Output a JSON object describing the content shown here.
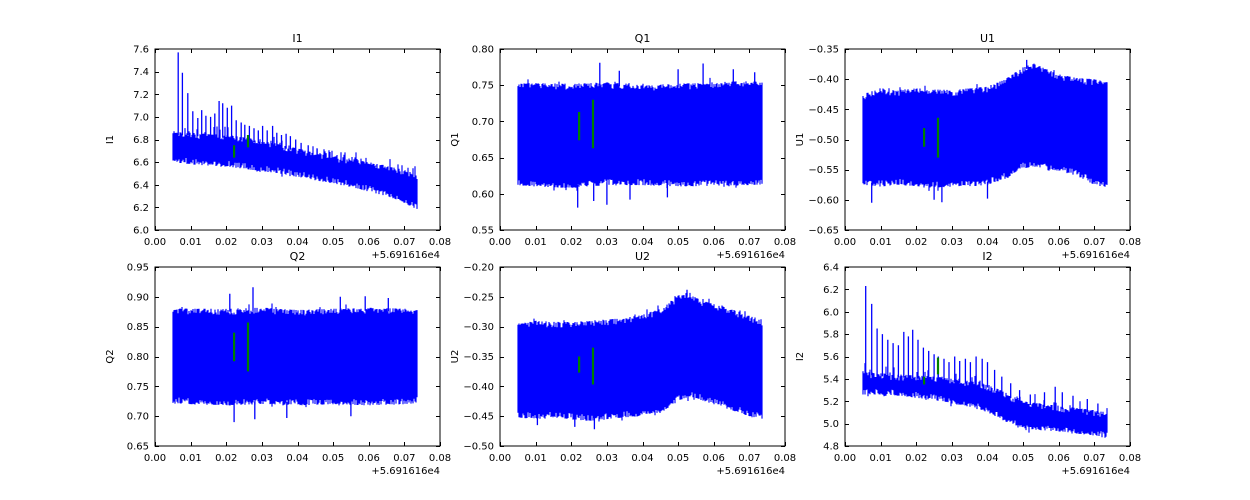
{
  "style": {
    "line_color": "#0000ff",
    "marker_color": "#008000",
    "axes_color": "#000000",
    "text_color": "#000000",
    "background": "#ffffff"
  },
  "chart_data": [
    {
      "type": "line",
      "title": "I1",
      "ylabel": "I1",
      "xlabel": "",
      "legend": null,
      "grid": false,
      "xlim": [
        0.0,
        0.08
      ],
      "ylim": [
        6.0,
        7.6
      ],
      "xtick_vals": [
        0.0,
        0.01,
        0.02,
        0.03,
        0.04,
        0.05,
        0.06,
        0.07,
        0.08
      ],
      "xtick_labels": [
        "0.00",
        "0.01",
        "0.02",
        "0.03",
        "0.04",
        "0.05",
        "0.06",
        "0.07",
        "0.08"
      ],
      "ytick_vals": [
        6.0,
        6.2,
        6.4,
        6.6,
        6.8,
        7.0,
        7.2,
        7.4,
        7.6
      ],
      "ytick_labels": [
        "6.0",
        "6.2",
        "6.4",
        "6.6",
        "6.8",
        "7.0",
        "7.2",
        "7.4",
        "7.6"
      ],
      "x_offset_label": "+5.691616e4",
      "x_start": 0.005,
      "x_end": 0.0735,
      "envelope": [
        [
          0.005,
          6.6,
          6.87
        ],
        [
          0.01,
          6.58,
          6.86
        ],
        [
          0.015,
          6.57,
          6.85
        ],
        [
          0.02,
          6.56,
          6.84
        ],
        [
          0.025,
          6.54,
          6.82
        ],
        [
          0.03,
          6.52,
          6.79
        ],
        [
          0.035,
          6.5,
          6.76
        ],
        [
          0.04,
          6.47,
          6.72
        ],
        [
          0.045,
          6.44,
          6.69
        ],
        [
          0.05,
          6.41,
          6.66
        ],
        [
          0.055,
          6.38,
          6.63
        ],
        [
          0.06,
          6.34,
          6.6
        ],
        [
          0.065,
          6.3,
          6.57
        ],
        [
          0.07,
          6.24,
          6.53
        ],
        [
          0.0735,
          6.18,
          6.5
        ]
      ],
      "spikes": [
        [
          0.0065,
          7.57
        ],
        [
          0.0077,
          7.39
        ],
        [
          0.0092,
          7.21
        ],
        [
          0.0106,
          7.05
        ],
        [
          0.012,
          6.99
        ],
        [
          0.0131,
          7.06
        ],
        [
          0.0143,
          7.01
        ],
        [
          0.0156,
          7.0
        ],
        [
          0.0168,
          7.03
        ],
        [
          0.018,
          7.14
        ],
        [
          0.019,
          7.12
        ],
        [
          0.0203,
          7.08
        ],
        [
          0.0215,
          7.1
        ],
        [
          0.0228,
          6.97
        ],
        [
          0.0242,
          6.95
        ],
        [
          0.0252,
          6.93
        ],
        [
          0.0265,
          6.92
        ],
        [
          0.0278,
          6.9
        ],
        [
          0.029,
          6.88
        ],
        [
          0.0302,
          6.92
        ],
        [
          0.0315,
          6.88
        ],
        [
          0.033,
          6.92
        ],
        [
          0.0342,
          6.86
        ],
        [
          0.0355,
          6.84
        ],
        [
          0.0368,
          6.85
        ],
        [
          0.038,
          6.83
        ],
        [
          0.0395,
          6.8
        ],
        [
          0.041,
          6.77
        ],
        [
          0.043,
          6.75
        ],
        [
          0.0455,
          6.72
        ],
        [
          0.048,
          6.68
        ],
        [
          0.051,
          6.65
        ],
        [
          0.0545,
          6.62
        ],
        [
          0.058,
          6.6
        ],
        [
          0.062,
          6.57
        ],
        [
          0.066,
          6.54
        ],
        [
          0.07,
          6.51
        ]
      ],
      "dips": [],
      "markers": [
        [
          0.0222,
          6.64,
          6.75
        ],
        [
          0.0261,
          6.73,
          6.84
        ]
      ],
      "seed": 11,
      "spiky": true
    },
    {
      "type": "line",
      "title": "Q1",
      "ylabel": "Q1",
      "xlabel": "",
      "legend": null,
      "grid": false,
      "xlim": [
        0.0,
        0.08
      ],
      "ylim": [
        0.55,
        0.8
      ],
      "xtick_vals": [
        0.0,
        0.01,
        0.02,
        0.03,
        0.04,
        0.05,
        0.06,
        0.07,
        0.08
      ],
      "xtick_labels": [
        "0.00",
        "0.01",
        "0.02",
        "0.03",
        "0.04",
        "0.05",
        "0.06",
        "0.07",
        "0.08"
      ],
      "ytick_vals": [
        0.55,
        0.6,
        0.65,
        0.7,
        0.75,
        0.8
      ],
      "ytick_labels": [
        "0.55",
        "0.60",
        "0.65",
        "0.70",
        "0.75",
        "0.80"
      ],
      "x_offset_label": "+5.691616e4",
      "x_start": 0.005,
      "x_end": 0.0735,
      "envelope": [
        [
          0.005,
          0.612,
          0.752
        ],
        [
          0.01,
          0.61,
          0.753
        ],
        [
          0.02,
          0.608,
          0.752
        ],
        [
          0.03,
          0.612,
          0.754
        ],
        [
          0.04,
          0.612,
          0.75
        ],
        [
          0.05,
          0.61,
          0.752
        ],
        [
          0.06,
          0.611,
          0.754
        ],
        [
          0.07,
          0.612,
          0.756
        ],
        [
          0.0735,
          0.613,
          0.755
        ]
      ],
      "spikes": [
        [
          0.028,
          0.781
        ],
        [
          0.0335,
          0.77
        ],
        [
          0.05,
          0.772
        ],
        [
          0.057,
          0.78
        ],
        [
          0.0655,
          0.772
        ],
        [
          0.0715,
          0.768
        ]
      ],
      "dips": [
        [
          0.0218,
          0.581
        ],
        [
          0.0263,
          0.59
        ],
        [
          0.03,
          0.585
        ],
        [
          0.0365,
          0.592
        ],
        [
          0.047,
          0.595
        ]
      ],
      "markers": [
        [
          0.0222,
          0.674,
          0.713
        ],
        [
          0.0261,
          0.663,
          0.73
        ]
      ],
      "seed": 22,
      "spiky": false
    },
    {
      "type": "line",
      "title": "U1",
      "ylabel": "U1",
      "xlabel": "",
      "legend": null,
      "grid": false,
      "xlim": [
        0.0,
        0.08
      ],
      "ylim": [
        -0.65,
        -0.35
      ],
      "xtick_vals": [
        0.0,
        0.01,
        0.02,
        0.03,
        0.04,
        0.05,
        0.06,
        0.07,
        0.08
      ],
      "xtick_labels": [
        "0.00",
        "0.01",
        "0.02",
        "0.03",
        "0.04",
        "0.05",
        "0.06",
        "0.07",
        "0.08"
      ],
      "ytick_vals": [
        -0.65,
        -0.6,
        -0.55,
        -0.5,
        -0.45,
        -0.4,
        -0.35
      ],
      "ytick_labels": [
        "−0.65",
        "−0.60",
        "−0.55",
        "−0.50",
        "−0.45",
        "−0.40",
        "−0.35"
      ],
      "x_offset_label": "+5.691616e4",
      "x_start": 0.005,
      "x_end": 0.0735,
      "envelope": [
        [
          0.005,
          -0.575,
          -0.425
        ],
        [
          0.01,
          -0.578,
          -0.415
        ],
        [
          0.015,
          -0.575,
          -0.418
        ],
        [
          0.02,
          -0.578,
          -0.415
        ],
        [
          0.025,
          -0.58,
          -0.417
        ],
        [
          0.03,
          -0.578,
          -0.418
        ],
        [
          0.035,
          -0.578,
          -0.415
        ],
        [
          0.04,
          -0.575,
          -0.412
        ],
        [
          0.045,
          -0.565,
          -0.4
        ],
        [
          0.05,
          -0.548,
          -0.38
        ],
        [
          0.053,
          -0.545,
          -0.374
        ],
        [
          0.056,
          -0.548,
          -0.382
        ],
        [
          0.06,
          -0.552,
          -0.392
        ],
        [
          0.065,
          -0.56,
          -0.398
        ],
        [
          0.07,
          -0.575,
          -0.4
        ],
        [
          0.0735,
          -0.58,
          -0.405
        ]
      ],
      "spikes": [
        [
          0.051,
          -0.368
        ]
      ],
      "dips": [
        [
          0.0075,
          -0.605
        ],
        [
          0.025,
          -0.6
        ],
        [
          0.0272,
          -0.604
        ],
        [
          0.04,
          -0.598
        ]
      ],
      "markers": [
        [
          0.0222,
          -0.512,
          -0.481
        ],
        [
          0.0261,
          -0.53,
          -0.464
        ]
      ],
      "seed": 33,
      "spiky": false
    },
    {
      "type": "line",
      "title": "Q2",
      "ylabel": "Q2",
      "xlabel": "",
      "legend": null,
      "grid": false,
      "xlim": [
        0.0,
        0.08
      ],
      "ylim": [
        0.65,
        0.95
      ],
      "xtick_vals": [
        0.0,
        0.01,
        0.02,
        0.03,
        0.04,
        0.05,
        0.06,
        0.07,
        0.08
      ],
      "xtick_labels": [
        "0.00",
        "0.01",
        "0.02",
        "0.03",
        "0.04",
        "0.05",
        "0.06",
        "0.07",
        "0.08"
      ],
      "ytick_vals": [
        0.65,
        0.7,
        0.75,
        0.8,
        0.85,
        0.9,
        0.95
      ],
      "ytick_labels": [
        "0.65",
        "0.70",
        "0.75",
        "0.80",
        "0.85",
        "0.90",
        "0.95"
      ],
      "x_offset_label": "+5.691616e4",
      "x_start": 0.005,
      "x_end": 0.0735,
      "envelope": [
        [
          0.005,
          0.722,
          0.882
        ],
        [
          0.01,
          0.72,
          0.88
        ],
        [
          0.02,
          0.718,
          0.88
        ],
        [
          0.03,
          0.72,
          0.882
        ],
        [
          0.04,
          0.718,
          0.878
        ],
        [
          0.05,
          0.72,
          0.88
        ],
        [
          0.06,
          0.718,
          0.882
        ],
        [
          0.07,
          0.72,
          0.88
        ],
        [
          0.0735,
          0.722,
          0.878
        ]
      ],
      "spikes": [
        [
          0.0275,
          0.916
        ],
        [
          0.021,
          0.905
        ],
        [
          0.052,
          0.9
        ],
        [
          0.059,
          0.901
        ],
        [
          0.0655,
          0.898
        ]
      ],
      "dips": [
        [
          0.0222,
          0.69
        ],
        [
          0.028,
          0.695
        ],
        [
          0.037,
          0.697
        ],
        [
          0.055,
          0.7
        ]
      ],
      "markers": [
        [
          0.0222,
          0.792,
          0.84
        ],
        [
          0.0261,
          0.775,
          0.857
        ]
      ],
      "seed": 44,
      "spiky": false
    },
    {
      "type": "line",
      "title": "U2",
      "ylabel": "U2",
      "xlabel": "",
      "legend": null,
      "grid": false,
      "xlim": [
        0.0,
        0.08
      ],
      "ylim": [
        -0.5,
        -0.2
      ],
      "xtick_vals": [
        0.0,
        0.01,
        0.02,
        0.03,
        0.04,
        0.05,
        0.06,
        0.07,
        0.08
      ],
      "xtick_labels": [
        "0.00",
        "0.01",
        "0.02",
        "0.03",
        "0.04",
        "0.05",
        "0.06",
        "0.07",
        "0.08"
      ],
      "ytick_vals": [
        -0.5,
        -0.45,
        -0.4,
        -0.35,
        -0.3,
        -0.25,
        -0.2
      ],
      "ytick_labels": [
        "−0.50",
        "−0.45",
        "−0.40",
        "−0.35",
        "−0.30",
        "−0.25",
        "−0.20"
      ],
      "x_offset_label": "+5.691616e4",
      "x_start": 0.005,
      "x_end": 0.0735,
      "envelope": [
        [
          0.005,
          -0.452,
          -0.295
        ],
        [
          0.01,
          -0.455,
          -0.29
        ],
        [
          0.015,
          -0.452,
          -0.292
        ],
        [
          0.02,
          -0.455,
          -0.292
        ],
        [
          0.025,
          -0.458,
          -0.29
        ],
        [
          0.03,
          -0.455,
          -0.288
        ],
        [
          0.035,
          -0.452,
          -0.285
        ],
        [
          0.04,
          -0.45,
          -0.28
        ],
        [
          0.045,
          -0.445,
          -0.27
        ],
        [
          0.05,
          -0.425,
          -0.248
        ],
        [
          0.053,
          -0.418,
          -0.242
        ],
        [
          0.056,
          -0.422,
          -0.255
        ],
        [
          0.06,
          -0.43,
          -0.262
        ],
        [
          0.065,
          -0.44,
          -0.27
        ],
        [
          0.07,
          -0.45,
          -0.282
        ],
        [
          0.0735,
          -0.455,
          -0.288
        ]
      ],
      "spikes": [
        [
          0.0525,
          -0.238
        ]
      ],
      "dips": [
        [
          0.021,
          -0.468
        ],
        [
          0.0265,
          -0.472
        ],
        [
          0.0105,
          -0.465
        ]
      ],
      "markers": [
        [
          0.0222,
          -0.377,
          -0.35
        ],
        [
          0.0261,
          -0.397,
          -0.335
        ]
      ],
      "seed": 55,
      "spiky": false
    },
    {
      "type": "line",
      "title": "I2",
      "ylabel": "I2",
      "xlabel": "",
      "legend": null,
      "grid": false,
      "xlim": [
        0.0,
        0.08
      ],
      "ylim": [
        4.8,
        6.4
      ],
      "xtick_vals": [
        0.0,
        0.01,
        0.02,
        0.03,
        0.04,
        0.05,
        0.06,
        0.07,
        0.08
      ],
      "xtick_labels": [
        "0.00",
        "0.01",
        "0.02",
        "0.03",
        "0.04",
        "0.05",
        "0.06",
        "0.07",
        "0.08"
      ],
      "ytick_vals": [
        4.8,
        5.0,
        5.2,
        5.4,
        5.6,
        5.8,
        6.0,
        6.2,
        6.4
      ],
      "ytick_labels": [
        "4.8",
        "5.0",
        "5.2",
        "5.4",
        "5.6",
        "5.8",
        "6.0",
        "6.2",
        "6.4"
      ],
      "x_offset_label": "+5.691616e4",
      "x_start": 0.005,
      "x_end": 0.0735,
      "envelope": [
        [
          0.005,
          5.26,
          5.47
        ],
        [
          0.01,
          5.26,
          5.45
        ],
        [
          0.015,
          5.25,
          5.44
        ],
        [
          0.02,
          5.23,
          5.43
        ],
        [
          0.025,
          5.21,
          5.42
        ],
        [
          0.03,
          5.18,
          5.4
        ],
        [
          0.035,
          5.15,
          5.38
        ],
        [
          0.04,
          5.1,
          5.35
        ],
        [
          0.045,
          5.02,
          5.28
        ],
        [
          0.05,
          4.96,
          5.2
        ],
        [
          0.055,
          4.94,
          5.18
        ],
        [
          0.06,
          4.93,
          5.16
        ],
        [
          0.065,
          4.91,
          5.14
        ],
        [
          0.07,
          4.89,
          5.12
        ],
        [
          0.0735,
          4.87,
          5.1
        ]
      ],
      "spikes": [
        [
          0.0058,
          6.23
        ],
        [
          0.0075,
          6.07
        ],
        [
          0.009,
          5.85
        ],
        [
          0.0105,
          5.8
        ],
        [
          0.012,
          5.75
        ],
        [
          0.0135,
          5.72
        ],
        [
          0.015,
          5.7
        ],
        [
          0.0165,
          5.82
        ],
        [
          0.0178,
          5.78
        ],
        [
          0.019,
          5.84
        ],
        [
          0.0205,
          5.75
        ],
        [
          0.022,
          5.68
        ],
        [
          0.0235,
          5.65
        ],
        [
          0.025,
          5.62
        ],
        [
          0.0262,
          5.6
        ],
        [
          0.0278,
          5.58
        ],
        [
          0.0292,
          5.55
        ],
        [
          0.0308,
          5.6
        ],
        [
          0.0322,
          5.56
        ],
        [
          0.0338,
          5.58
        ],
        [
          0.0352,
          5.55
        ],
        [
          0.0368,
          5.6
        ],
        [
          0.0385,
          5.58
        ],
        [
          0.04,
          5.55
        ],
        [
          0.042,
          5.48
        ],
        [
          0.044,
          5.42
        ],
        [
          0.0465,
          5.36
        ],
        [
          0.049,
          5.3
        ],
        [
          0.052,
          5.26
        ],
        [
          0.056,
          5.28
        ],
        [
          0.059,
          5.33
        ],
        [
          0.061,
          5.28
        ],
        [
          0.064,
          5.25
        ],
        [
          0.068,
          5.22
        ],
        [
          0.071,
          5.18
        ]
      ],
      "dips": [],
      "markers": [
        [
          0.0222,
          5.35,
          5.42
        ],
        [
          0.0261,
          5.44,
          5.59
        ]
      ],
      "seed": 66,
      "spiky": true
    }
  ]
}
